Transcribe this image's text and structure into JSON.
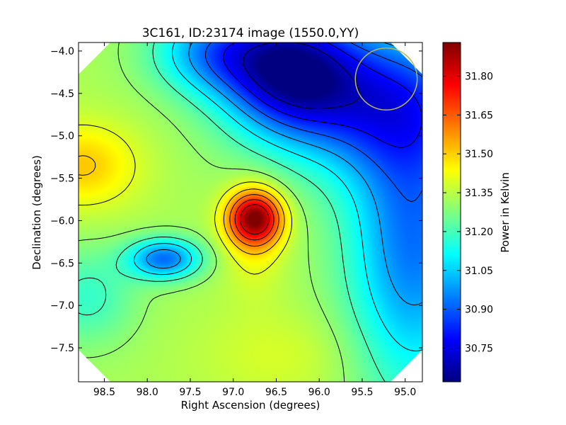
{
  "chart_data": {
    "type": "heatmap",
    "title": "3C161, ID:23174 image (1550.0,YY)",
    "xlabel": "Right Ascension (degrees)",
    "ylabel": "Declination (degrees)",
    "colorbar_label": "Power in Kelvin",
    "xlim": [
      98.8,
      94.8
    ],
    "ylim": [
      -7.9,
      -3.9
    ],
    "x_ticks": [
      98.5,
      98.0,
      97.5,
      97.0,
      96.5,
      96.0,
      95.5,
      95.0
    ],
    "x_tick_labels": [
      "98.5",
      "98.0",
      "97.5",
      "97.0",
      "96.5",
      "96.0",
      "95.5",
      "95.0"
    ],
    "y_ticks": [
      -4.0,
      -4.5,
      -5.0,
      -5.5,
      -6.0,
      -6.5,
      -7.0,
      -7.5
    ],
    "y_tick_labels": [
      "−4.0",
      "−4.5",
      "−5.0",
      "−5.5",
      "−6.0",
      "−6.5",
      "−7.0",
      "−7.5"
    ],
    "colorbar_range": [
      30.62,
      31.93
    ],
    "colorbar_ticks": [
      30.75,
      30.9,
      31.05,
      31.2,
      31.35,
      31.5,
      31.65,
      31.8
    ],
    "colorbar_tick_labels": [
      "30.75",
      "30.90",
      "31.05",
      "31.20",
      "31.35",
      "31.50",
      "31.65",
      "31.80"
    ],
    "colormap": "jet",
    "contour_color": "#000000",
    "background_level": 31.33,
    "features": [
      {
        "kind": "peak",
        "ra": 96.75,
        "dec": -5.97,
        "amplitude": 0.55,
        "sigma_ra": 0.22,
        "sigma_dec": 0.22,
        "value": 31.88
      },
      {
        "kind": "ridge",
        "ra": 96.75,
        "dec": -6.2,
        "amplitude": 0.1,
        "sigma_ra": 0.25,
        "sigma_dec": 0.45
      },
      {
        "kind": "high",
        "ra": 98.75,
        "dec": -5.35,
        "amplitude": 0.18,
        "sigma_ra": 0.45,
        "sigma_dec": 0.35,
        "value": 31.48
      },
      {
        "kind": "low",
        "ra": 96.35,
        "dec": -4.2,
        "amplitude": -0.55,
        "sigma_ra": 0.55,
        "sigma_dec": 0.5,
        "value": 30.65
      },
      {
        "kind": "low",
        "ra": 97.25,
        "dec": -4.0,
        "amplitude": -0.3,
        "sigma_ra": 0.5,
        "sigma_dec": 0.35
      },
      {
        "kind": "low",
        "ra": 95.4,
        "dec": -4.6,
        "amplitude": -0.4,
        "sigma_ra": 0.9,
        "sigma_dec": 0.6
      },
      {
        "kind": "low",
        "ra": 94.9,
        "dec": -6.2,
        "amplitude": -0.4,
        "sigma_ra": 0.55,
        "sigma_dec": 1.3
      },
      {
        "kind": "low",
        "ra": 97.8,
        "dec": -6.45,
        "amplitude": -0.4,
        "sigma_ra": 0.3,
        "sigma_dec": 0.17,
        "value": 30.9
      },
      {
        "kind": "low",
        "ra": 98.7,
        "dec": -6.9,
        "amplitude": -0.15,
        "sigma_ra": 0.4,
        "sigma_dec": 0.4
      },
      {
        "kind": "high",
        "ra": 96.4,
        "dec": -7.6,
        "amplitude": 0.06,
        "sigma_ra": 0.7,
        "sigma_dec": 0.4
      }
    ],
    "contour_levels": [
      30.7,
      30.8,
      30.9,
      31.0,
      31.1,
      31.2,
      31.3,
      31.4,
      31.5,
      31.6,
      31.7,
      31.8
    ],
    "beam_circle": {
      "ra": 95.22,
      "dec": -4.33,
      "radius_deg": 0.36,
      "color": "#b8b85c"
    }
  }
}
